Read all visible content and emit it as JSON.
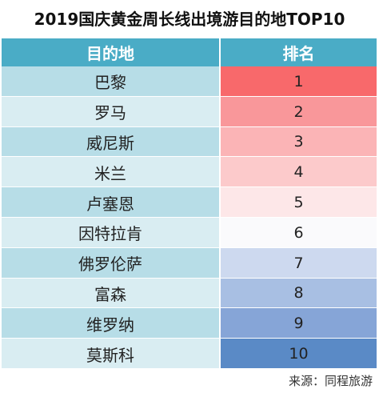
{
  "chart_data": {
    "type": "table",
    "title": "2019国庆黄金周长线出境游目的地TOP10",
    "columns": [
      "目的地",
      "排名"
    ],
    "rows": [
      {
        "destination": "巴黎",
        "rank": "1",
        "color": "#f8696b"
      },
      {
        "destination": "罗马",
        "rank": "2",
        "color": "#f9979a"
      },
      {
        "destination": "威尼斯",
        "rank": "3",
        "color": "#fbb4b6"
      },
      {
        "destination": "米兰",
        "rank": "4",
        "color": "#fccacb"
      },
      {
        "destination": "卢塞恩",
        "rank": "5",
        "color": "#fde7e8"
      },
      {
        "destination": "因特拉肯",
        "rank": "6",
        "color": "#fafafc"
      },
      {
        "destination": "佛罗伦萨",
        "rank": "7",
        "color": "#cdd9ef"
      },
      {
        "destination": "富森",
        "rank": "8",
        "color": "#a8bfe3"
      },
      {
        "destination": "维罗纳",
        "rank": "9",
        "color": "#86a5d7"
      },
      {
        "destination": "莫斯科",
        "rank": "10",
        "color": "#5a8ac6"
      }
    ],
    "source": "来源：同程旅游"
  }
}
